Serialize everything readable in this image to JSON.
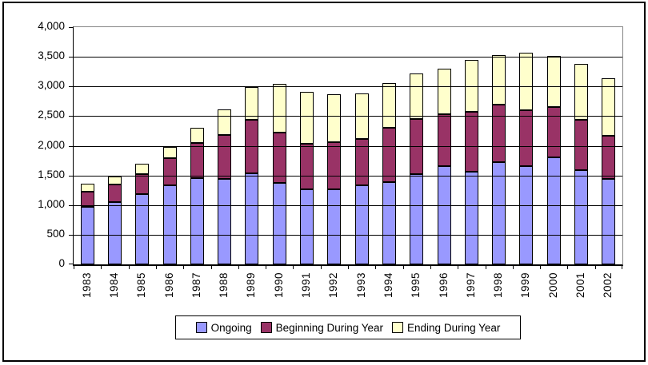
{
  "chart_data": {
    "type": "bar",
    "stacked": true,
    "title": "",
    "xlabel": "",
    "ylabel": "",
    "categories": [
      "1983",
      "1984",
      "1985",
      "1986",
      "1987",
      "1988",
      "1989",
      "1990",
      "1991",
      "1992",
      "1993",
      "1994",
      "1995",
      "1996",
      "1997",
      "1998",
      "1999",
      "2000",
      "2001",
      "2002"
    ],
    "series": [
      {
        "name": "Ongoing",
        "color": "#9999FF",
        "values": [
          970,
          1050,
          1190,
          1335,
          1460,
          1445,
          1535,
          1370,
          1270,
          1260,
          1340,
          1390,
          1525,
          1660,
          1560,
          1730,
          1650,
          1805,
          1595,
          1435
        ]
      },
      {
        "name": "Beginning During Year",
        "color": "#993366",
        "values": [
          250,
          290,
          340,
          455,
          590,
          745,
          905,
          845,
          765,
          790,
          785,
          910,
          935,
          870,
          1010,
          970,
          945,
          845,
          850,
          730
        ]
      },
      {
        "name": "Ending During Year",
        "color": "#FFFFCC",
        "values": [
          130,
          140,
          170,
          190,
          250,
          430,
          550,
          815,
          875,
          810,
          765,
          750,
          770,
          765,
          870,
          830,
          965,
          860,
          945,
          965
        ]
      }
    ],
    "ylim": [
      0,
      4000
    ],
    "ytick_step": 500,
    "ytick_labels": [
      "4,000",
      "3,500",
      "3,000",
      "2,500",
      "2,000",
      "1,500",
      "1,000",
      "500",
      "0"
    ],
    "grid": true,
    "legend_position": "bottom"
  },
  "colors": {
    "background": "#FFFFFF",
    "frame_border": "#000000",
    "gridline": "#000000",
    "plot_border_gray": "#848484",
    "axis": "#000000",
    "bar_border": "#000000"
  }
}
